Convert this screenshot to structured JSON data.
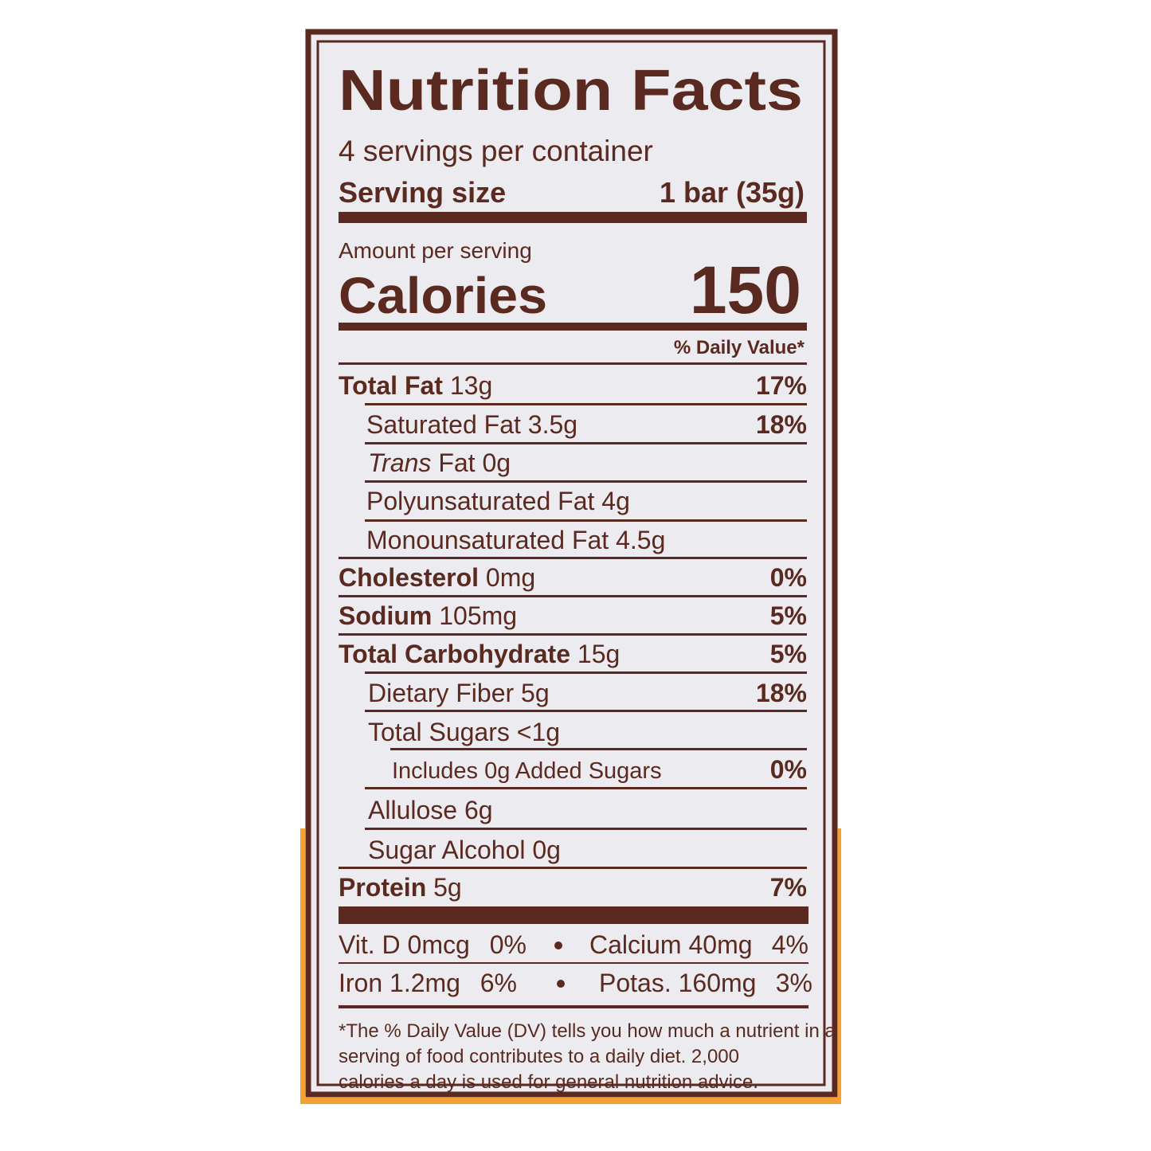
{
  "title": "Nutrition Facts",
  "servings": "4 servings per container",
  "serving_size": {
    "label": "Serving size",
    "value": "1 bar (35g)"
  },
  "amount_per_serving": "Amount per serving",
  "calories": {
    "label": "Calories",
    "value": 150
  },
  "dv_header": "% Daily Value*",
  "nutrients": [
    {
      "name": "Total Fat",
      "amount": "13g",
      "dv": "17%"
    },
    {
      "name": "Saturated Fat",
      "amount": "3.5g",
      "dv": "18%"
    },
    {
      "name_italic": "Trans",
      "name": "Fat",
      "amount": "0g"
    },
    {
      "name": "Polyunsaturated Fat",
      "amount": "4g"
    },
    {
      "name": "Monounsaturated Fat",
      "amount": "4.5g"
    },
    {
      "name": "Cholesterol",
      "amount": "0mg",
      "dv": "0%"
    },
    {
      "name": "Sodium",
      "amount": "105mg",
      "dv": "5%"
    },
    {
      "name": "Total Carbohydrate",
      "amount": "15g",
      "dv": "5%"
    },
    {
      "name": "Dietary Fiber",
      "amount": "5g",
      "dv": "18%"
    },
    {
      "name": "Total Sugars",
      "amount": "<1g"
    },
    {
      "name": "Includes 0g Added Sugars",
      "dv": "0%"
    },
    {
      "name": "Allulose",
      "amount": "6g"
    },
    {
      "name": "Sugar Alcohol",
      "amount": "0g"
    },
    {
      "name": "Protein",
      "amount": "5g",
      "dv": "7%"
    }
  ],
  "vitamins": [
    {
      "name": "Vit. D",
      "amount": "0mcg",
      "dv": "0%"
    },
    {
      "name": "Calcium",
      "amount": "40mg",
      "dv": "4%"
    },
    {
      "name": "Iron",
      "amount": "1.2mg",
      "dv": "6%"
    },
    {
      "name": "Potas.",
      "amount": "160mg",
      "dv": "3%"
    }
  ],
  "footnote": [
    "*The % Daily Value (DV) tells you how much a nutrient in a",
    "serving of food contributes to a daily diet. 2,000",
    "calories a day is used for general nutrition advice."
  ]
}
